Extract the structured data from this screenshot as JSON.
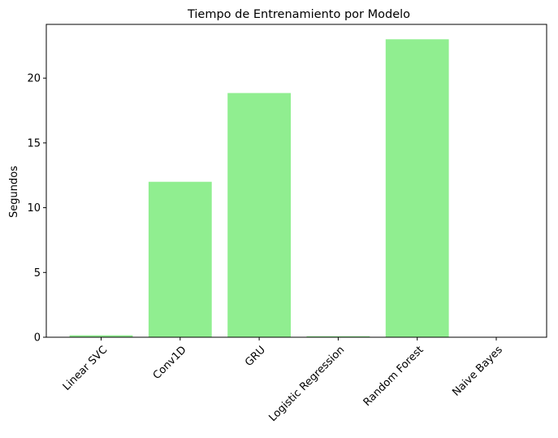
{
  "chart_data": {
    "type": "bar",
    "title": "Tiempo de Entrenamiento por Modelo",
    "xlabel": "",
    "ylabel": "Segundos",
    "categories": [
      "Linear SVC",
      "Conv1D",
      "GRU",
      "Logistic Regression",
      "Random Forest",
      "Naive Bayes"
    ],
    "values": [
      0.15,
      12.0,
      18.85,
      0.08,
      23.0,
      0.02
    ],
    "ylim": [
      0,
      24.15
    ],
    "yticks": [
      0,
      5,
      10,
      15,
      20
    ],
    "grid": false,
    "legend": "none",
    "colors": {
      "bar": "#90ee90",
      "axis": "#000000",
      "background": "#ffffff"
    }
  }
}
